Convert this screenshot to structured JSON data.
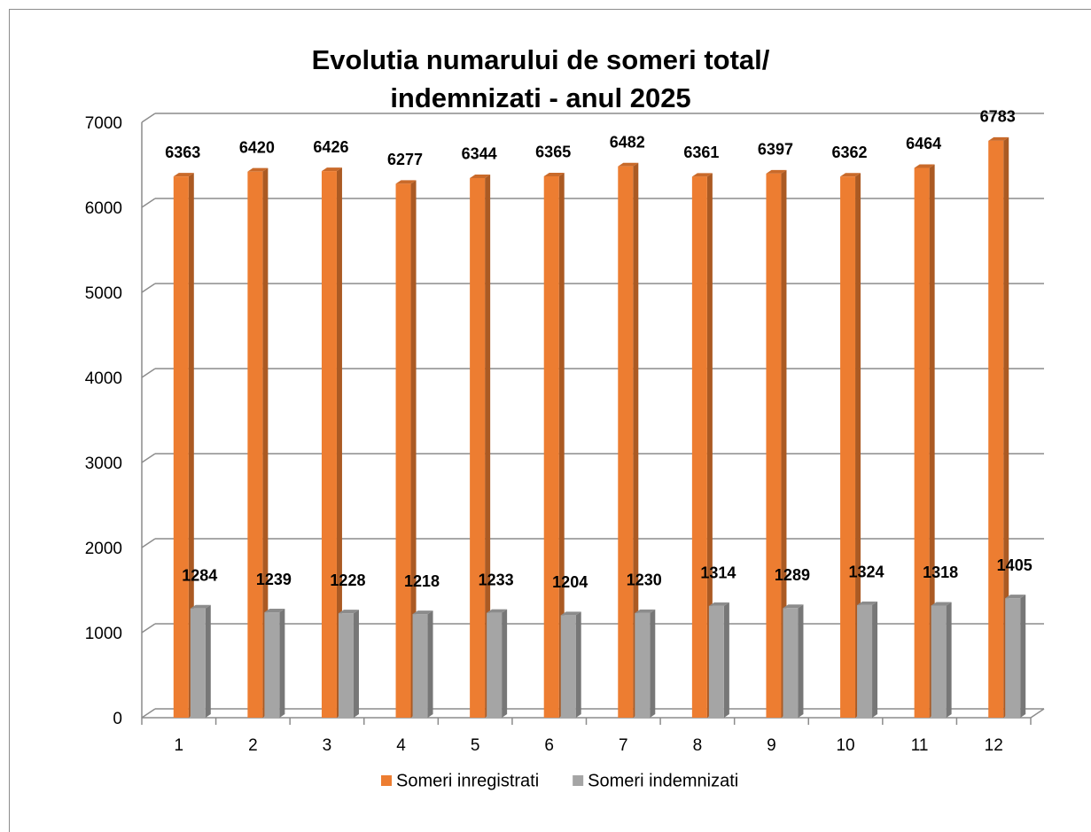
{
  "chart_data": {
    "type": "bar3d",
    "title": [
      "Evolutia numarului de someri total/",
      "indemnizati -  anul 2025"
    ],
    "categories": [
      "1",
      "2",
      "3",
      "4",
      "5",
      "6",
      "7",
      "8",
      "9",
      "10",
      "11",
      "12"
    ],
    "series": [
      {
        "name": "Someri inregistrati",
        "color": "#ed7d31",
        "values": [
          6363,
          6420,
          6426,
          6277,
          6344,
          6365,
          6482,
          6361,
          6397,
          6362,
          6464,
          6783
        ]
      },
      {
        "name": "Someri indemnizati",
        "color": "#a5a5a5",
        "values": [
          1284,
          1239,
          1228,
          1218,
          1233,
          1204,
          1230,
          1314,
          1289,
          1324,
          1318,
          1405
        ]
      }
    ],
    "ylim": [
      0,
      7000
    ],
    "yticks": [
      0,
      1000,
      2000,
      3000,
      4000,
      5000,
      6000,
      7000
    ],
    "grid": true,
    "legend": "bottom"
  }
}
